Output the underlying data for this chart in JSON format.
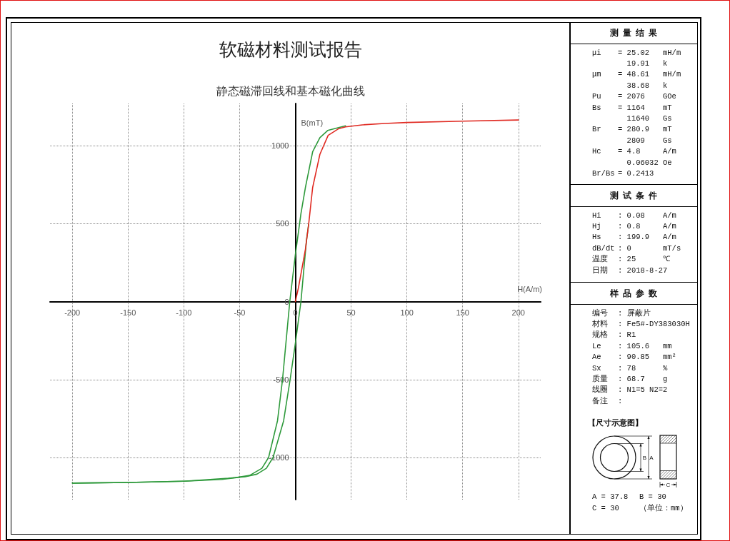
{
  "chart_data": [
    {
      "type": "line",
      "title": "软磁材料测试报告",
      "subtitle": "静态磁滞回线和基本磁化曲线",
      "xlabel": "H(A/m)",
      "ylabel": "B(mT)",
      "series": [
        {
          "color": "#2f9a3c",
          "x": [
            -200,
            -150,
            -100,
            -66,
            -54,
            -41,
            -30,
            -24,
            -16,
            -11.5,
            -5,
            0,
            5,
            9,
            15.5,
            22,
            29,
            45
          ],
          "values": [
            -1164,
            -1160,
            -1152,
            -1141,
            -1130,
            -1115,
            -1069,
            -1000,
            -764,
            -500,
            0,
            300,
            563,
            731,
            960,
            1051,
            1097,
            1127
          ]
        },
        {
          "color": "#2f9a3c",
          "x": [
            -200,
            -150,
            -100,
            -60,
            -45,
            -34.5,
            -26,
            -20,
            -10.5,
            -4.7,
            0,
            5,
            10,
            12
          ],
          "values": [
            -1164,
            -1160,
            -1152,
            -1133,
            -1123,
            -1107,
            -1069,
            -1000,
            -764,
            -500,
            -268,
            0,
            395,
            500
          ]
        },
        {
          "color": "#e02a22",
          "x": [
            0,
            2.8,
            9,
            12,
            15.5,
            22,
            29.4,
            39,
            45,
            60,
            80,
            100,
            150,
            200
          ],
          "values": [
            0,
            90,
            334,
            500,
            731,
            944,
            1066,
            1109,
            1120,
            1133,
            1142,
            1148,
            1157,
            1164
          ]
        }
      ],
      "xlim": [
        -220,
        220
      ],
      "xticks": [
        -200,
        -150,
        -100,
        -50,
        0,
        50,
        100,
        150,
        200
      ],
      "ylim": [
        -1270,
        1270
      ],
      "yticks": [
        -1000,
        -500,
        0,
        500,
        1000
      ],
      "grid": true,
      "marker": "none"
    },
    {
      "type": "other",
      "title": "测量结果",
      "annotations": [
        "μi\t= 25.02\tmH/m",
        "\t  19.91\tk",
        "μm\t= 48.61\tmH/m",
        "\t  38.68\tk",
        "Pu\t= 2076\tGOe",
        "Bs\t= 1164\tmT",
        "\t  11640\tGs",
        "Br\t= 280.9\tmT",
        "\t  2809\tGs",
        "Hc\t= 4.8\tA/m",
        "\t  0.06032\tOe",
        "Br/Bs\t= 0.2413"
      ]
    },
    {
      "type": "other",
      "title": "测试条件",
      "annotations": [
        "Hi\t: 0.08\tA/m",
        "Hj\t: 0.8\tA/m",
        "Hs\t: 199.9\tA/m",
        "dB/dt\t: 0\tmT/s",
        "温度\t: 25\t℃",
        "日期\t: 2018-8-27"
      ]
    },
    {
      "type": "other",
      "title": "样品参数",
      "annotations": [
        "编号\t: 屏蔽片",
        "材料\t: Fe5#-DY383030H",
        "规格\t: R1",
        "Le\t: 105.6\tmm",
        "Ae\t: 90.85\tmm²",
        "Sx\t: 78\t%",
        "质量\t: 68.7\tg",
        "线圈\t: N1=5 N2=2",
        "备注\t:"
      ]
    },
    {
      "type": "other",
      "title": "【尺寸示意图】",
      "xlabel": "C",
      "ylabel": "B",
      "y2label": "A",
      "annotations": [
        "A = 37.8\tB = 30",
        "C = 30\t（单位：mm）"
      ]
    }
  ]
}
